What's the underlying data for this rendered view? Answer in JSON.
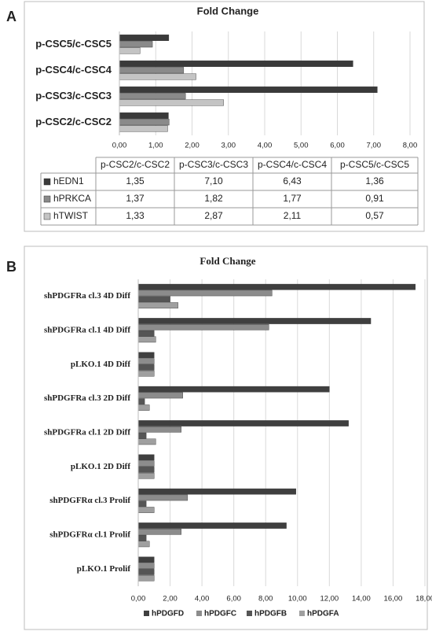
{
  "chart_data": [
    {
      "type": "bar",
      "orientation": "horizontal",
      "panel_label": "A",
      "title": "Fold Change",
      "categories": [
        "p-CSC2/c-CSC2",
        "p-CSC3/c-CSC3",
        "p-CSC4/c-CSC4",
        "p-CSC5/c-CSC5"
      ],
      "series": [
        {
          "name": "hEDN1",
          "color": "#3a3a3a",
          "values": [
            1.35,
            7.1,
            6.43,
            1.36
          ],
          "value_labels": [
            "1,35",
            "7,10",
            "6,43",
            "1,36"
          ]
        },
        {
          "name": "hPRKCA",
          "color": "#8a8a8a",
          "values": [
            1.37,
            1.82,
            1.77,
            0.91
          ],
          "value_labels": [
            "1,37",
            "1,82",
            "1,77",
            "0,91"
          ]
        },
        {
          "name": "hTWIST",
          "color": "#c4c4c4",
          "values": [
            1.33,
            2.87,
            2.11,
            0.57
          ],
          "value_labels": [
            "1,33",
            "2,87",
            "2,11",
            "0,57"
          ]
        }
      ],
      "xlim": [
        0,
        8
      ],
      "xticks": [
        {
          "value": 0,
          "label": "0,00"
        },
        {
          "value": 1,
          "label": "1,00"
        },
        {
          "value": 2,
          "label": "2,00"
        },
        {
          "value": 3,
          "label": "3,00"
        },
        {
          "value": 4,
          "label": "4,00"
        },
        {
          "value": 5,
          "label": "5,00"
        },
        {
          "value": 6,
          "label": "6,00"
        },
        {
          "value": 7,
          "label": "7,00"
        },
        {
          "value": 8,
          "label": "8,00"
        }
      ],
      "grid": true,
      "legend": "table"
    },
    {
      "type": "bar",
      "orientation": "horizontal",
      "panel_label": "B",
      "title": "Fold Change",
      "categories": [
        "shPDGFRa cl.3 4D Diff",
        "shPDGFRa cl.1 4D Diff",
        "pLKO.1  4D Diff",
        "shPDGFRa cl.3 2D Diff",
        "shPDGFRa cl.1 2D Diff",
        "pLKO.1  2D Diff",
        "shPDGFRα cl.3  Prolif",
        "shPDGFRα cl.1  Prolif",
        "pLKO.1  Prolif"
      ],
      "series": [
        {
          "name": "hPDGFD",
          "color": "#3f3f3f",
          "values": [
            17.4,
            14.6,
            1,
            12.0,
            13.2,
            1,
            9.9,
            9.3,
            1
          ]
        },
        {
          "name": "hPDGFC",
          "color": "#8c8c8c",
          "values": [
            8.4,
            8.2,
            1,
            2.8,
            2.7,
            1,
            3.1,
            2.7,
            1
          ]
        },
        {
          "name": "hPDGFB",
          "color": "#555555",
          "values": [
            2.0,
            1.0,
            1,
            0.4,
            0.5,
            1,
            0.5,
            0.5,
            1
          ]
        },
        {
          "name": "hPDGFA",
          "color": "#9f9f9f",
          "values": [
            2.5,
            1.1,
            1,
            0.7,
            1.1,
            1,
            1.0,
            0.7,
            1
          ]
        }
      ],
      "xlim": [
        0,
        18
      ],
      "xticks": [
        {
          "value": 0,
          "label": "0,00"
        },
        {
          "value": 2,
          "label": "2,00"
        },
        {
          "value": 4,
          "label": "4,00"
        },
        {
          "value": 6,
          "label": "6,00"
        },
        {
          "value": 8,
          "label": "8,00"
        },
        {
          "value": 10,
          "label": "10,00"
        },
        {
          "value": 12,
          "label": "12,00"
        },
        {
          "value": 14,
          "label": "14,00"
        },
        {
          "value": 16,
          "label": "16,00"
        },
        {
          "value": 18,
          "label": "18,00"
        }
      ],
      "grid": true,
      "legend": "bottom"
    }
  ]
}
